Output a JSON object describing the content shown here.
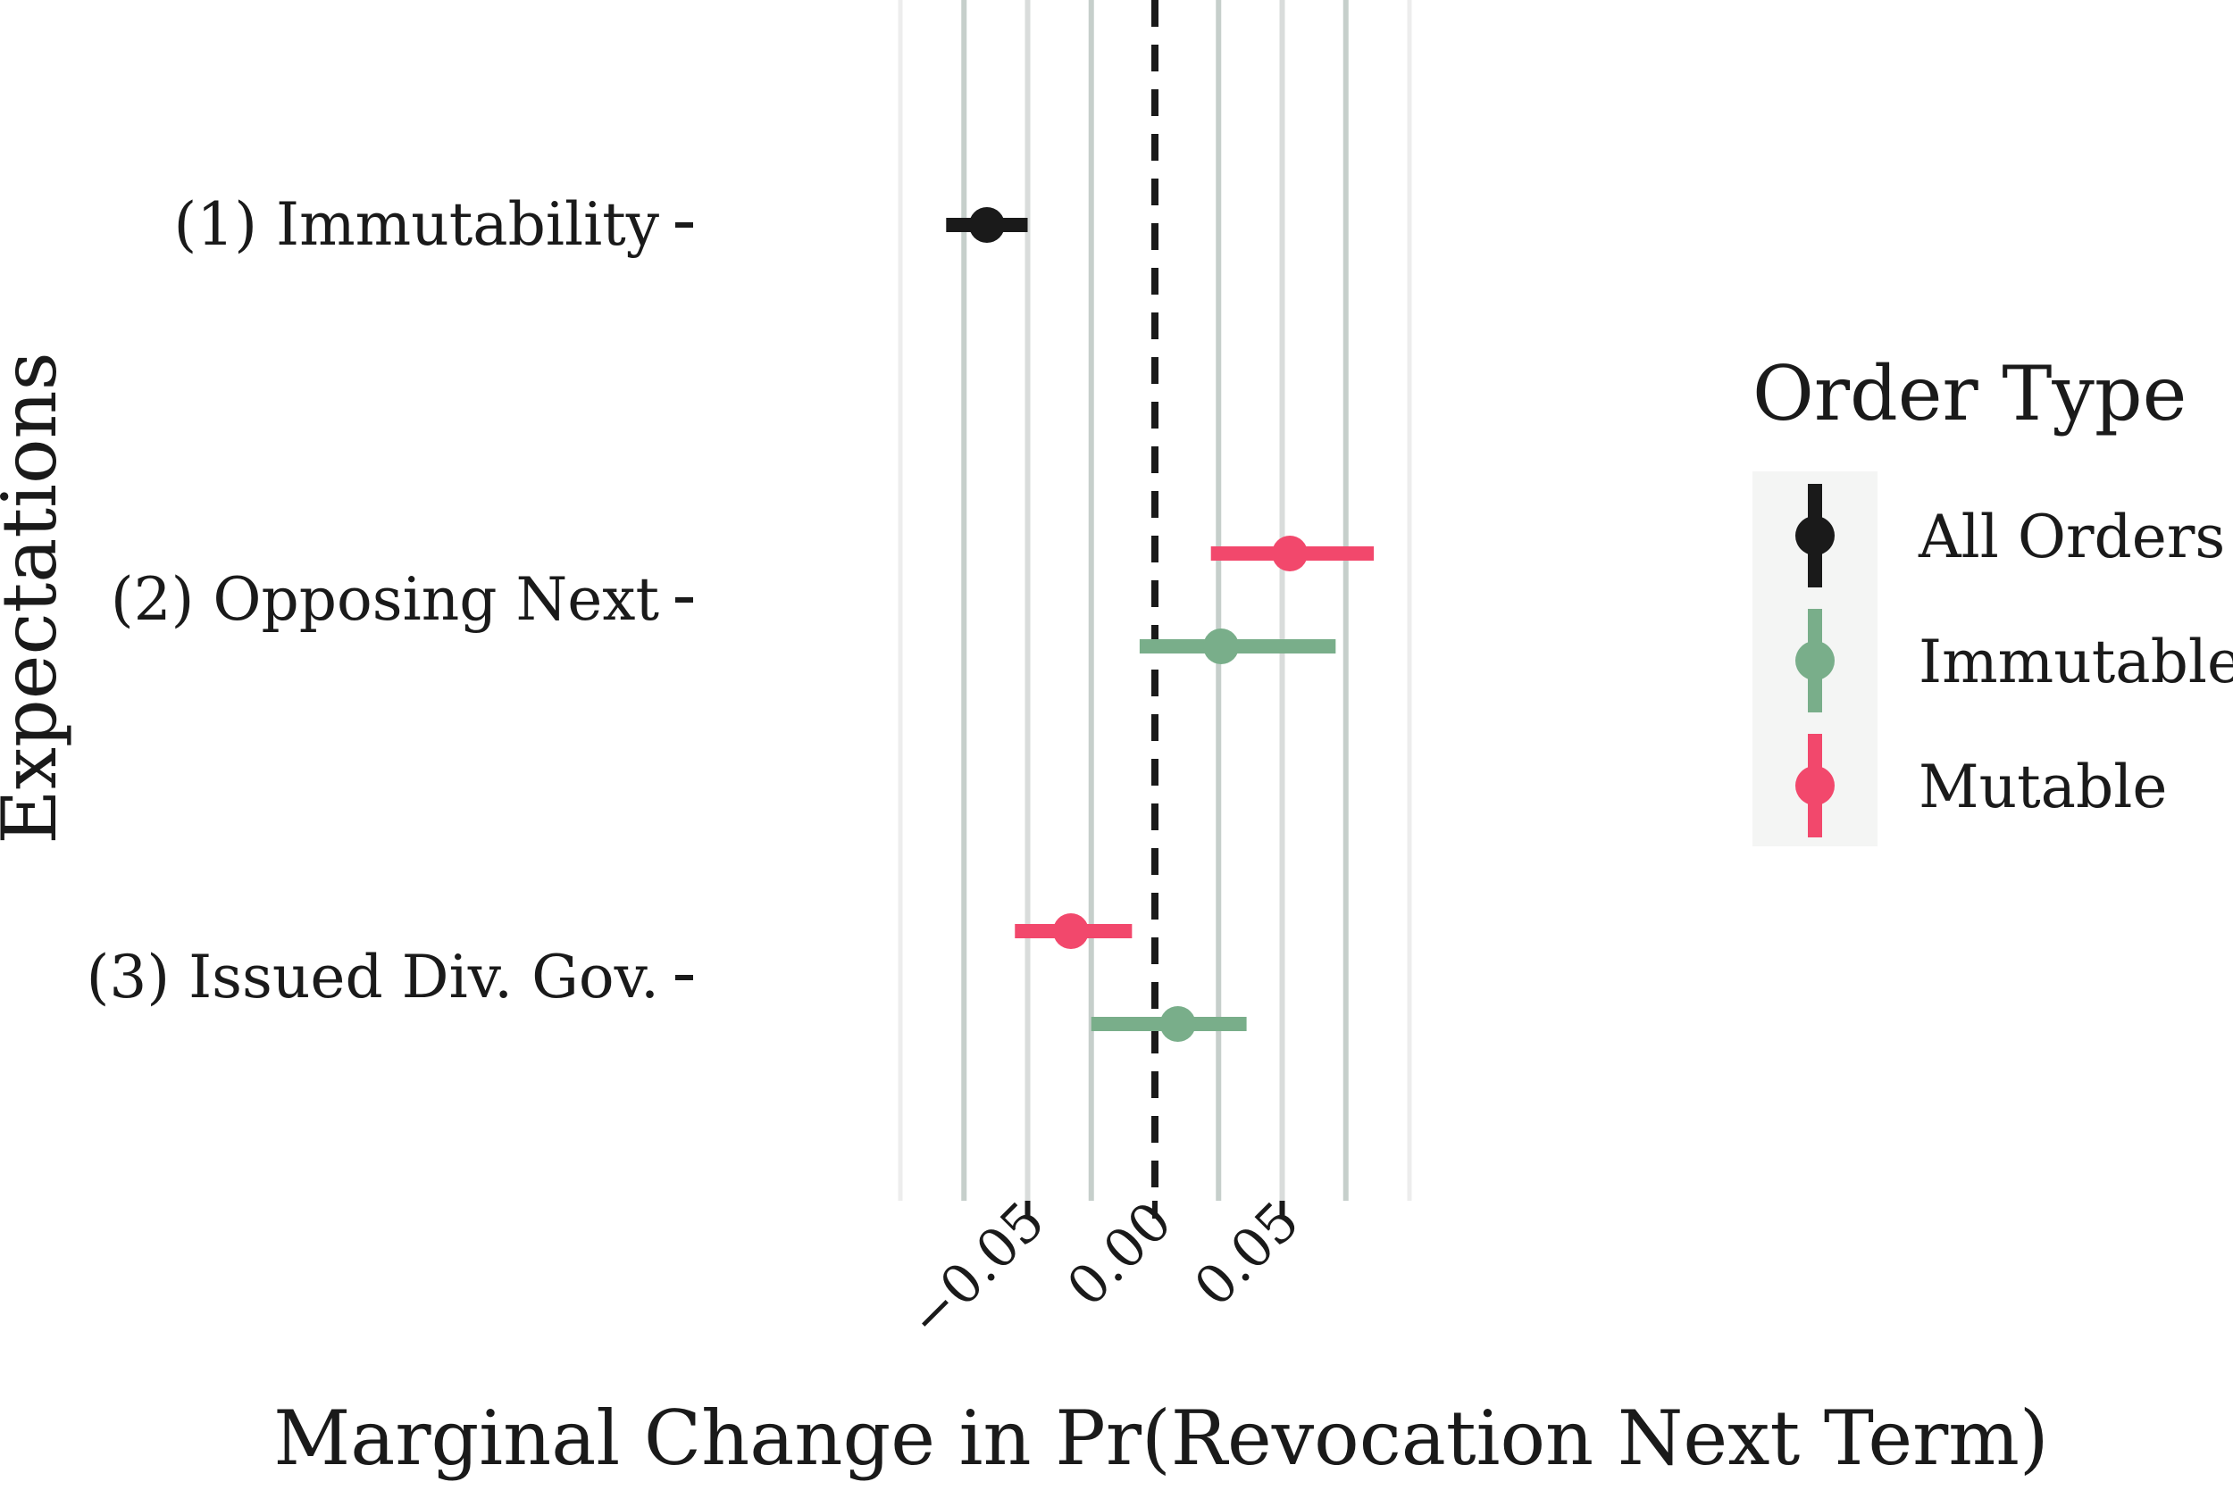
{
  "chart_data": {
    "type": "scatter",
    "subtype": "coefficient-plot-with-intervals",
    "title": "",
    "xlabel": "Marginal Change in Pr(Revocation Next Term)",
    "ylabel": "Expectations",
    "xlim": [
      -0.075,
      0.075
    ],
    "x_ticks": [
      -0.05,
      0.0,
      0.05
    ],
    "x_tick_labels": [
      "−0.05",
      "0.00",
      "0.05"
    ],
    "reference_line": {
      "x": 0.0,
      "style": "dashed"
    },
    "grid": true,
    "legend": {
      "title": "Order Type",
      "position": "right",
      "entries": [
        {
          "label": "All Orders",
          "color": "#1a1a1a"
        },
        {
          "label": "Immutable",
          "color": "#79ae8a"
        },
        {
          "label": "Mutable",
          "color": "#f2486c"
        }
      ]
    },
    "categories": [
      "(1) Immutability",
      "(2) Opposing Next",
      "(3) Issued Div. Gov."
    ],
    "series": [
      {
        "name": "All Orders",
        "color": "#1a1a1a",
        "points": [
          {
            "category": "(1) Immutability",
            "estimate": -0.066,
            "lower": -0.082,
            "upper": -0.05
          }
        ]
      },
      {
        "name": "Immutable",
        "color": "#79ae8a",
        "points": [
          {
            "category": "(2) Opposing Next",
            "estimate": 0.026,
            "lower": -0.006,
            "upper": 0.071
          },
          {
            "category": "(3) Issued Div. Gov.",
            "estimate": 0.009,
            "lower": -0.025,
            "upper": 0.036
          }
        ]
      },
      {
        "name": "Mutable",
        "color": "#f2486c",
        "points": [
          {
            "category": "(2) Opposing Next",
            "estimate": 0.053,
            "lower": 0.022,
            "upper": 0.086
          },
          {
            "category": "(3) Issued Div. Gov.",
            "estimate": -0.033,
            "lower": -0.055,
            "upper": -0.009
          }
        ]
      }
    ]
  }
}
